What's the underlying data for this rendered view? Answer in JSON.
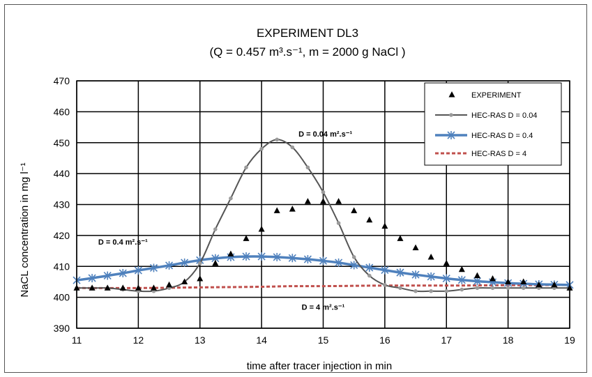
{
  "chart_data": {
    "type": "scatter",
    "title": "EXPERIMENT DL3",
    "subtitle": "(Q = 0.457 m³.s⁻¹, m = 2000 g NaCl )",
    "xlabel": "time after tracer injection in min",
    "ylabel": "NaCL concentration in mg l⁻¹",
    "xlim": [
      11,
      19
    ],
    "ylim": [
      390,
      470
    ],
    "xticks": [
      "11",
      "12",
      "13",
      "14",
      "15",
      "16",
      "17",
      "18",
      "19"
    ],
    "yticks": [
      "390",
      "400",
      "410",
      "420",
      "430",
      "440",
      "450",
      "460",
      "470"
    ],
    "grid": true,
    "legend_position": "top-right",
    "annotations": [
      {
        "text": "D = 0.04 m².s⁻¹",
        "x": 14.6,
        "y": 452
      },
      {
        "text": "D = 0.4 m².s⁻¹",
        "x": 11.35,
        "y": 417
      },
      {
        "text": "D = 4 m².s⁻¹",
        "x": 14.65,
        "y": 396
      }
    ],
    "series": [
      {
        "name": "EXPERIMENT",
        "kind": "markers",
        "marker": "triangle",
        "color": "#000000",
        "x": [
          11,
          11.25,
          11.5,
          11.75,
          12,
          12.25,
          12.5,
          12.75,
          13,
          13.25,
          13.5,
          13.75,
          14,
          14.25,
          14.5,
          14.75,
          15,
          15.25,
          15.5,
          15.75,
          16,
          16.25,
          16.5,
          16.75,
          17,
          17.25,
          17.5,
          17.75,
          18,
          18.25,
          18.5,
          18.75,
          19
        ],
        "y": [
          403,
          403,
          403,
          403,
          403,
          403,
          404,
          405,
          406,
          411,
          414,
          419,
          422,
          428,
          428.5,
          431,
          431,
          431,
          428,
          425,
          423,
          419,
          416,
          413,
          411,
          409,
          407,
          406,
          405,
          405,
          404,
          404,
          403
        ]
      },
      {
        "name": "HEC-RAS D = 0.04",
        "kind": "line-markers",
        "marker": "circle",
        "color": "#555555",
        "x": [
          11,
          11.25,
          11.5,
          11.75,
          12,
          12.25,
          12.5,
          12.75,
          13,
          13.25,
          13.5,
          13.75,
          14,
          14.25,
          14.5,
          14.75,
          15,
          15.25,
          15.5,
          15.75,
          16,
          16.25,
          16.5,
          16.75,
          17,
          17.25,
          17.5,
          17.75,
          18,
          18.25,
          18.5,
          18.75,
          19
        ],
        "y": [
          403,
          403,
          403,
          402.5,
          402,
          402,
          403,
          405,
          411,
          422,
          432,
          442,
          448,
          451,
          448.5,
          442,
          434,
          424,
          413,
          407,
          404,
          403,
          402,
          402,
          402,
          402.5,
          403,
          403,
          403,
          403,
          403,
          403,
          403
        ]
      },
      {
        "name": "HEC-RAS D = 0.4",
        "kind": "line-markers",
        "marker": "star",
        "color": "#4f81bd",
        "x": [
          11,
          11.25,
          11.5,
          11.75,
          12,
          12.25,
          12.5,
          12.75,
          13,
          13.25,
          13.5,
          13.75,
          14,
          14.25,
          14.5,
          14.75,
          15,
          15.25,
          15.5,
          15.75,
          16,
          16.25,
          16.5,
          16.75,
          17,
          17.25,
          17.5,
          17.75,
          18,
          18.25,
          18.5,
          18.75,
          19
        ],
        "y": [
          405.5,
          406.2,
          407,
          407.8,
          408.7,
          409.5,
          410.3,
          411.2,
          412,
          412.6,
          413,
          413.2,
          413.2,
          413,
          412.7,
          412.3,
          411.8,
          411.2,
          410.4,
          409.6,
          408.8,
          408,
          407.3,
          406.7,
          406.1,
          405.6,
          405.2,
          404.9,
          404.6,
          404.4,
          404.2,
          404.1,
          404
        ]
      },
      {
        "name": "HEC-RAS D = 4",
        "kind": "dashed-line",
        "color": "#c0504d",
        "x": [
          11,
          12,
          13,
          14,
          14.5,
          15,
          16,
          17,
          18,
          19
        ],
        "y": [
          403,
          403,
          403.2,
          403.4,
          403.6,
          403.6,
          403.8,
          403.8,
          403.9,
          404
        ]
      }
    ]
  }
}
